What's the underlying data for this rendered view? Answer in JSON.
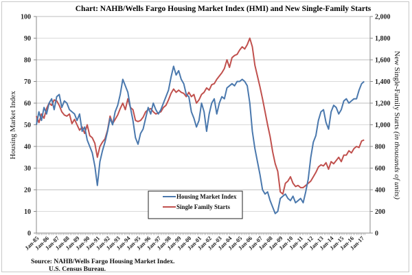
{
  "chart_data": {
    "type": "line",
    "title": "Chart:  NAHB/Wells Fargo Housing Market Index (HMI) and New Single-Family  Starts",
    "ylabel_left": "Housing Market Index",
    "ylabel_right_main": "New Single-Family  Starts ",
    "ylabel_right_italic": "(in thousands  of units)",
    "ylim_left": [
      0,
      100
    ],
    "ylim_right": [
      0,
      2000
    ],
    "left_ticks": [
      "0",
      "10",
      "20",
      "30",
      "40",
      "50",
      "60",
      "70",
      "80",
      "90",
      "100"
    ],
    "right_ticks": [
      "0",
      "200",
      "400",
      "600",
      "800",
      "1,000",
      "1,200",
      "1,400",
      "1,600",
      "1,800",
      "2,000"
    ],
    "x_tick_labels": [
      "Jan-85",
      "Jan-86",
      "Jan-87",
      "Jan-88",
      "Jan-89",
      "Jan-90",
      "Jan-91",
      "Jan-92",
      "Jan-93",
      "Jan-94",
      "Jan-95",
      "Jan-96",
      "Jan-97",
      "Jan-98",
      "Jan-99",
      "Jan-00",
      "Jan-01",
      "Jan-02",
      "Jan-03",
      "Jan-04",
      "Jan-05",
      "Jan-06",
      "Jan-07",
      "Jan-08",
      "Jan-09",
      "Jan-10",
      "Jan-11",
      "Jan-12",
      "Jan-13",
      "Jan-14",
      "Jan-15",
      "Jan-16",
      "Jan-17"
    ],
    "x_range": [
      1985.0,
      2017.4
    ],
    "grid": true,
    "legend": "bottom-center",
    "series": [
      {
        "name": "Housing Market Index",
        "axis": "left",
        "color": "#4a78ad",
        "x": [
          1985.0,
          1985.25,
          1985.5,
          1985.75,
          1986.0,
          1986.25,
          1986.5,
          1986.75,
          1987.0,
          1987.25,
          1987.5,
          1987.75,
          1988.0,
          1988.25,
          1988.5,
          1988.75,
          1989.0,
          1989.25,
          1989.5,
          1989.75,
          1990.0,
          1990.25,
          1990.5,
          1990.75,
          1991.0,
          1991.25,
          1991.5,
          1991.75,
          1992.0,
          1992.25,
          1992.5,
          1992.75,
          1993.0,
          1993.25,
          1993.5,
          1993.75,
          1994.0,
          1994.25,
          1994.5,
          1994.75,
          1995.0,
          1995.25,
          1995.5,
          1995.75,
          1996.0,
          1996.25,
          1996.5,
          1996.75,
          1997.0,
          1997.25,
          1997.5,
          1997.75,
          1998.0,
          1998.25,
          1998.5,
          1998.75,
          1999.0,
          1999.25,
          1999.5,
          1999.75,
          2000.0,
          2000.25,
          2000.5,
          2000.75,
          2001.0,
          2001.25,
          2001.5,
          2001.75,
          2002.0,
          2002.25,
          2002.5,
          2002.75,
          2003.0,
          2003.25,
          2003.5,
          2003.75,
          2004.0,
          2004.25,
          2004.5,
          2004.75,
          2005.0,
          2005.25,
          2005.5,
          2005.75,
          2006.0,
          2006.25,
          2006.5,
          2006.75,
          2007.0,
          2007.25,
          2007.5,
          2007.75,
          2008.0,
          2008.25,
          2008.5,
          2008.75,
          2009.0,
          2009.25,
          2009.5,
          2009.75,
          2010.0,
          2010.25,
          2010.5,
          2010.75,
          2011.0,
          2011.25,
          2011.5,
          2011.75,
          2012.0,
          2012.25,
          2012.5,
          2012.75,
          2013.0,
          2013.25,
          2013.5,
          2013.75,
          2014.0,
          2014.25,
          2014.5,
          2014.75,
          2015.0,
          2015.25,
          2015.5,
          2015.75,
          2016.0,
          2016.25,
          2016.5,
          2016.75,
          2017.0,
          2017.25
        ],
        "values": [
          50,
          56,
          52,
          58,
          55,
          60,
          62,
          57,
          63,
          64,
          58,
          61,
          60,
          57,
          56,
          55,
          52,
          55,
          47,
          49,
          43,
          40,
          37,
          31,
          22,
          33,
          38,
          42,
          47,
          53,
          50,
          56,
          59,
          64,
          71,
          68,
          65,
          58,
          52,
          44,
          41,
          46,
          48,
          53,
          58,
          55,
          60,
          57,
          55,
          57,
          60,
          63,
          66,
          72,
          77,
          73,
          75,
          71,
          69,
          64,
          63,
          56,
          53,
          49,
          52,
          60,
          56,
          47,
          55,
          60,
          62,
          55,
          60,
          63,
          62,
          67,
          68,
          69,
          68,
          70,
          70,
          71,
          70,
          68,
          60,
          47,
          39,
          33,
          27,
          20,
          18,
          19,
          15,
          12,
          9,
          10,
          16,
          17,
          18,
          16,
          15,
          17,
          14,
          15,
          16,
          14,
          19,
          25,
          35,
          42,
          45,
          52,
          56,
          57,
          51,
          48,
          56,
          59,
          58,
          55,
          57,
          61,
          62,
          60,
          61,
          62,
          62,
          66,
          69,
          70
        ],
        "_note": "quarterly estimates read from chart"
      },
      {
        "name": "Single Family Starts",
        "axis": "right",
        "color": "#c0504d",
        "x": [
          1985.0,
          1985.25,
          1985.5,
          1985.75,
          1986.0,
          1986.25,
          1986.5,
          1986.75,
          1987.0,
          1987.25,
          1987.5,
          1987.75,
          1988.0,
          1988.25,
          1988.5,
          1988.75,
          1989.0,
          1989.25,
          1989.5,
          1989.75,
          1990.0,
          1990.25,
          1990.5,
          1990.75,
          1991.0,
          1991.25,
          1991.5,
          1991.75,
          1992.0,
          1992.25,
          1992.5,
          1992.75,
          1993.0,
          1993.25,
          1993.5,
          1993.75,
          1994.0,
          1994.25,
          1994.5,
          1994.75,
          1995.0,
          1995.25,
          1995.5,
          1995.75,
          1996.0,
          1996.25,
          1996.5,
          1996.75,
          1997.0,
          1997.25,
          1997.5,
          1997.75,
          1998.0,
          1998.25,
          1998.5,
          1998.75,
          1999.0,
          1999.25,
          1999.5,
          1999.75,
          2000.0,
          2000.25,
          2000.5,
          2000.75,
          2001.0,
          2001.25,
          2001.5,
          2001.75,
          2002.0,
          2002.25,
          2002.5,
          2002.75,
          2003.0,
          2003.25,
          2003.5,
          2003.75,
          2004.0,
          2004.25,
          2004.5,
          2004.75,
          2005.0,
          2005.25,
          2005.5,
          2005.75,
          2006.0,
          2006.25,
          2006.5,
          2006.75,
          2007.0,
          2007.25,
          2007.5,
          2007.75,
          2008.0,
          2008.25,
          2008.5,
          2008.75,
          2009.0,
          2009.25,
          2009.5,
          2009.75,
          2010.0,
          2010.25,
          2010.5,
          2010.75,
          2011.0,
          2011.25,
          2011.5,
          2011.75,
          2012.0,
          2012.25,
          2012.5,
          2012.75,
          2013.0,
          2013.25,
          2013.5,
          2013.75,
          2014.0,
          2014.25,
          2014.5,
          2014.75,
          2015.0,
          2015.25,
          2015.5,
          2015.75,
          2016.0,
          2016.25,
          2016.5,
          2016.75,
          2017.0,
          2017.25
        ],
        "values": [
          1080,
          1020,
          1100,
          1060,
          1150,
          1200,
          1180,
          1230,
          1220,
          1180,
          1120,
          1090,
          1080,
          1100,
          1010,
          1050,
          1000,
          950,
          980,
          920,
          1000,
          900,
          880,
          830,
          700,
          800,
          840,
          870,
          950,
          1080,
          1010,
          1050,
          1090,
          1150,
          1200,
          1140,
          1240,
          1160,
          1140,
          1040,
          1030,
          1040,
          1070,
          1120,
          1140,
          1150,
          1120,
          1100,
          1110,
          1120,
          1160,
          1180,
          1230,
          1290,
          1330,
          1300,
          1320,
          1300,
          1290,
          1260,
          1300,
          1260,
          1280,
          1200,
          1230,
          1280,
          1300,
          1340,
          1320,
          1370,
          1380,
          1420,
          1450,
          1480,
          1520,
          1600,
          1530,
          1620,
          1640,
          1650,
          1690,
          1720,
          1700,
          1740,
          1800,
          1720,
          1550,
          1450,
          1350,
          1240,
          1120,
          1000,
          890,
          750,
          640,
          570,
          380,
          360,
          460,
          480,
          520,
          460,
          430,
          440,
          420,
          420,
          440,
          460,
          480,
          520,
          560,
          610,
          630,
          620,
          650,
          590,
          660,
          640,
          670,
          700,
          660,
          720,
          720,
          760,
          740,
          780,
          800,
          790,
          850,
          860
        ],
        "_note": "quarterly estimates read from chart (thousands of units)"
      }
    ],
    "source": {
      "line1": "Source: NAHB/Wells Fargo  Housing Market Index.",
      "line2": "U.S. Census Bureau."
    }
  }
}
